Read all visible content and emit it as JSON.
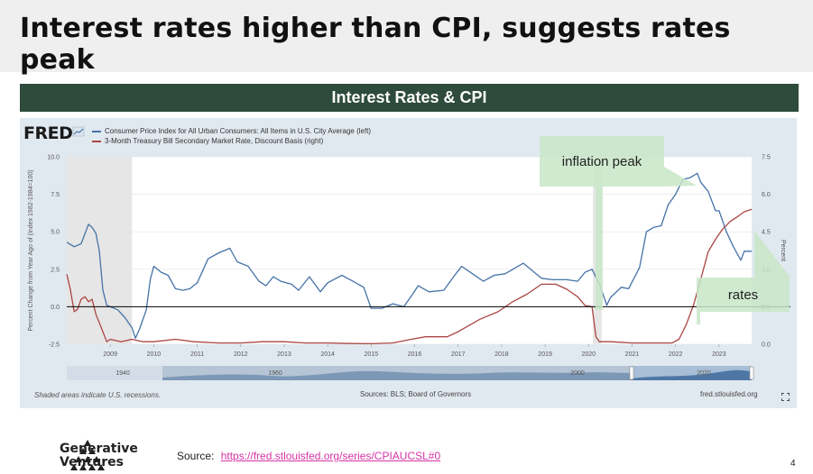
{
  "slide": {
    "title": "Interest rates higher than CPI, suggests rates peak",
    "banner": "Interest Rates & CPI",
    "page_number": "4"
  },
  "fred": {
    "logo": "FRED",
    "shaded_note": "Shaded areas indicate U.S. recessions.",
    "sources": "Sources: BLS; Board of Governors",
    "site": "fred.stlouisfed.org",
    "left_axis_label": "Percent Change from Year Ago of (Index 1982-1984=100)",
    "right_axis_label": "Percent",
    "navigator_labels": [
      "1940",
      "1960",
      "2000",
      "2020"
    ]
  },
  "callouts": {
    "inflation": "inflation peak",
    "rates": "rates"
  },
  "footer": {
    "company_line1": "Generative",
    "company_line2": "Ventures",
    "source_prefix": "Source:",
    "source_url": "https://fred.stlouisfed.org/series/CPIAUCSL#0"
  },
  "chart_data": {
    "type": "line",
    "x_ticks": [
      "2009",
      "2010",
      "2011",
      "2012",
      "2013",
      "2014",
      "2015",
      "2016",
      "2017",
      "2018",
      "2019",
      "2020",
      "2021",
      "2022",
      "2023"
    ],
    "y_left_ticks": [
      "-2.5",
      "0.0",
      "2.5",
      "5.0",
      "7.5",
      "10.0"
    ],
    "y_right_ticks": [
      "0.0",
      "1.5",
      "3.0",
      "4.5",
      "6.0",
      "7.5"
    ],
    "y_left_range": [
      -2.5,
      10
    ],
    "y_right_range": [
      0,
      7.5
    ],
    "x_range": [
      2008.0,
      2023.75
    ],
    "recessions": [
      [
        2008.0,
        2009.5
      ],
      [
        2020.1,
        2020.3
      ]
    ],
    "series": [
      {
        "name": "Consumer Price Index for All Urban Consumers: All Items in U.S. City Average (left)",
        "color": "#4572a7",
        "axis": "left",
        "points": [
          [
            2008.0,
            4.3
          ],
          [
            2008.17,
            4.0
          ],
          [
            2008.33,
            4.2
          ],
          [
            2008.5,
            5.5
          ],
          [
            2008.58,
            5.3
          ],
          [
            2008.67,
            4.9
          ],
          [
            2008.75,
            3.7
          ],
          [
            2008.83,
            1.1
          ],
          [
            2008.92,
            0.1
          ],
          [
            2009.0,
            0.0
          ],
          [
            2009.17,
            -0.2
          ],
          [
            2009.33,
            -0.7
          ],
          [
            2009.5,
            -1.4
          ],
          [
            2009.58,
            -2.1
          ],
          [
            2009.67,
            -1.5
          ],
          [
            2009.83,
            -0.2
          ],
          [
            2009.92,
            1.8
          ],
          [
            2010.0,
            2.7
          ],
          [
            2010.17,
            2.3
          ],
          [
            2010.33,
            2.1
          ],
          [
            2010.5,
            1.2
          ],
          [
            2010.67,
            1.1
          ],
          [
            2010.83,
            1.2
          ],
          [
            2011.0,
            1.6
          ],
          [
            2011.25,
            3.2
          ],
          [
            2011.5,
            3.6
          ],
          [
            2011.75,
            3.9
          ],
          [
            2011.92,
            3.0
          ],
          [
            2012.17,
            2.7
          ],
          [
            2012.42,
            1.7
          ],
          [
            2012.58,
            1.4
          ],
          [
            2012.75,
            2.0
          ],
          [
            2012.92,
            1.7
          ],
          [
            2013.17,
            1.5
          ],
          [
            2013.33,
            1.1
          ],
          [
            2013.58,
            2.0
          ],
          [
            2013.83,
            1.0
          ],
          [
            2014.0,
            1.6
          ],
          [
            2014.33,
            2.1
          ],
          [
            2014.58,
            1.7
          ],
          [
            2014.83,
            1.3
          ],
          [
            2015.0,
            -0.1
          ],
          [
            2015.25,
            -0.1
          ],
          [
            2015.5,
            0.2
          ],
          [
            2015.75,
            0.0
          ],
          [
            2015.92,
            0.7
          ],
          [
            2016.08,
            1.4
          ],
          [
            2016.33,
            1.0
          ],
          [
            2016.67,
            1.1
          ],
          [
            2016.92,
            2.1
          ],
          [
            2017.08,
            2.7
          ],
          [
            2017.33,
            2.2
          ],
          [
            2017.58,
            1.7
          ],
          [
            2017.83,
            2.1
          ],
          [
            2018.08,
            2.2
          ],
          [
            2018.5,
            2.9
          ],
          [
            2018.75,
            2.3
          ],
          [
            2018.92,
            1.9
          ],
          [
            2019.17,
            1.8
          ],
          [
            2019.5,
            1.8
          ],
          [
            2019.75,
            1.7
          ],
          [
            2019.92,
            2.3
          ],
          [
            2020.08,
            2.5
          ],
          [
            2020.25,
            1.5
          ],
          [
            2020.42,
            0.1
          ],
          [
            2020.5,
            0.6
          ],
          [
            2020.75,
            1.3
          ],
          [
            2020.92,
            1.2
          ],
          [
            2021.17,
            2.6
          ],
          [
            2021.33,
            5.0
          ],
          [
            2021.5,
            5.3
          ],
          [
            2021.67,
            5.4
          ],
          [
            2021.83,
            6.8
          ],
          [
            2022.0,
            7.5
          ],
          [
            2022.17,
            8.5
          ],
          [
            2022.33,
            8.6
          ],
          [
            2022.5,
            8.9
          ],
          [
            2022.58,
            8.3
          ],
          [
            2022.75,
            7.7
          ],
          [
            2022.92,
            6.4
          ],
          [
            2023.0,
            6.4
          ],
          [
            2023.17,
            5.0
          ],
          [
            2023.33,
            4.0
          ],
          [
            2023.5,
            3.1
          ],
          [
            2023.58,
            3.7
          ],
          [
            2023.75,
            3.7
          ]
        ]
      },
      {
        "name": "3-Month Treasury Bill Secondary Market Rate, Discount Basis (right)",
        "color": "#aa4643",
        "axis": "right",
        "points": [
          [
            2008.0,
            2.8
          ],
          [
            2008.08,
            2.2
          ],
          [
            2008.17,
            1.3
          ],
          [
            2008.25,
            1.4
          ],
          [
            2008.33,
            1.8
          ],
          [
            2008.42,
            1.9
          ],
          [
            2008.5,
            1.7
          ],
          [
            2008.58,
            1.8
          ],
          [
            2008.67,
            1.2
          ],
          [
            2008.83,
            0.5
          ],
          [
            2008.92,
            0.1
          ],
          [
            2009.0,
            0.2
          ],
          [
            2009.25,
            0.1
          ],
          [
            2009.5,
            0.2
          ],
          [
            2009.75,
            0.1
          ],
          [
            2010.0,
            0.1
          ],
          [
            2010.5,
            0.2
          ],
          [
            2010.92,
            0.1
          ],
          [
            2011.5,
            0.05
          ],
          [
            2012.0,
            0.05
          ],
          [
            2012.5,
            0.1
          ],
          [
            2013.0,
            0.1
          ],
          [
            2013.5,
            0.05
          ],
          [
            2014.0,
            0.05
          ],
          [
            2014.5,
            0.03
          ],
          [
            2015.0,
            0.02
          ],
          [
            2015.5,
            0.05
          ],
          [
            2015.92,
            0.2
          ],
          [
            2016.25,
            0.3
          ],
          [
            2016.75,
            0.3
          ],
          [
            2017.0,
            0.5
          ],
          [
            2017.5,
            1.0
          ],
          [
            2017.92,
            1.3
          ],
          [
            2018.25,
            1.7
          ],
          [
            2018.58,
            2.0
          ],
          [
            2018.92,
            2.4
          ],
          [
            2019.25,
            2.4
          ],
          [
            2019.5,
            2.2
          ],
          [
            2019.75,
            1.9
          ],
          [
            2019.92,
            1.55
          ],
          [
            2020.08,
            1.5
          ],
          [
            2020.17,
            0.3
          ],
          [
            2020.25,
            0.1
          ],
          [
            2020.5,
            0.1
          ],
          [
            2021.0,
            0.05
          ],
          [
            2021.5,
            0.05
          ],
          [
            2021.92,
            0.05
          ],
          [
            2022.08,
            0.2
          ],
          [
            2022.25,
            0.8
          ],
          [
            2022.42,
            1.6
          ],
          [
            2022.58,
            2.6
          ],
          [
            2022.75,
            3.7
          ],
          [
            2022.92,
            4.2
          ],
          [
            2023.08,
            4.6
          ],
          [
            2023.25,
            4.9
          ],
          [
            2023.42,
            5.1
          ],
          [
            2023.58,
            5.3
          ],
          [
            2023.75,
            5.4
          ]
        ]
      }
    ]
  }
}
